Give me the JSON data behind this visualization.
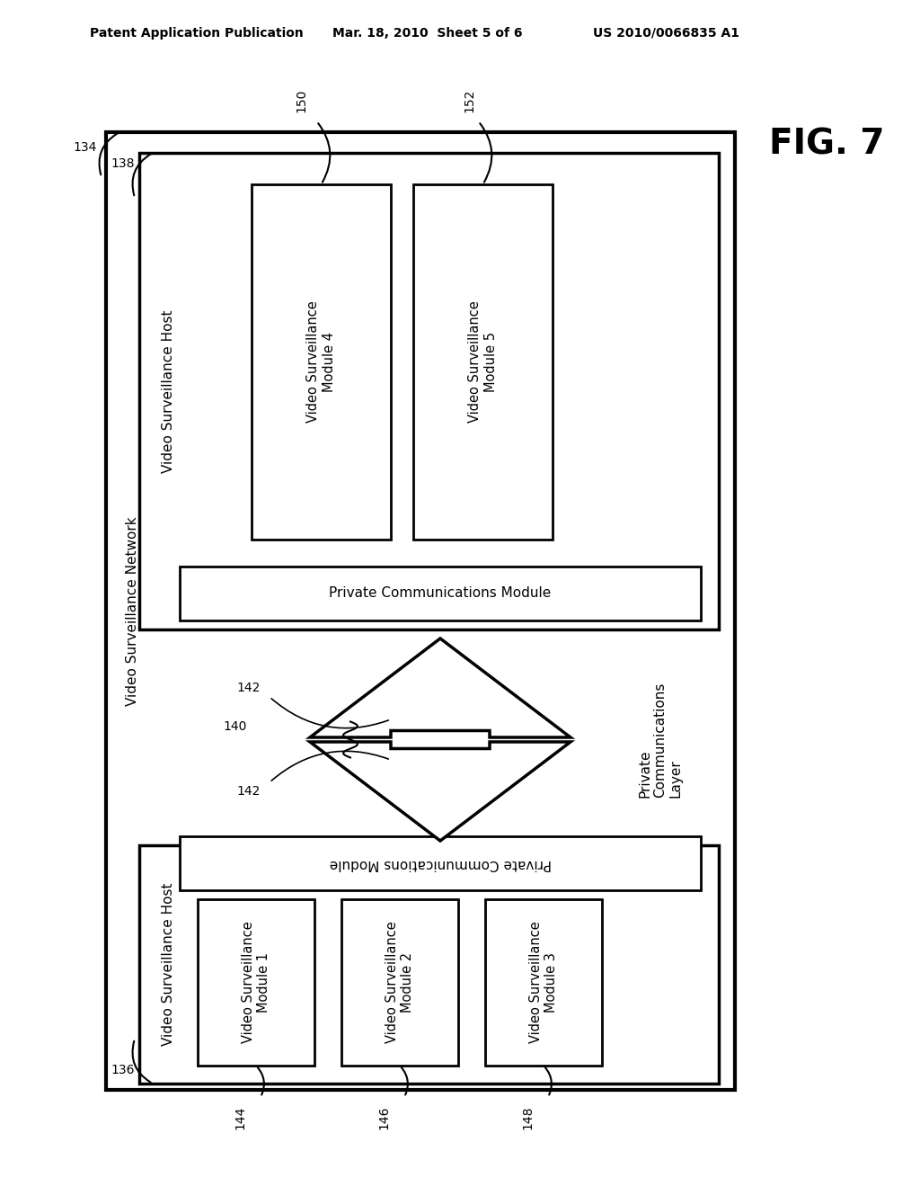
{
  "bg_color": "#ffffff",
  "header_left": "Patent Application Publication",
  "header_mid": "Mar. 18, 2010  Sheet 5 of 6",
  "header_right": "US 2010/0066835 A1",
  "fig_label": "FIG. 7",
  "outer_box_label": "Video Surveillance Network",
  "upper_host_label": "Video Surveillance Host",
  "upper_pcm_label": "Private Communications Module",
  "upper_vsm4_label": "Video Surveillance\nModule 4",
  "upper_vsm5_label": "Video Surveillance\nModule 5",
  "vsm4_ref": "150",
  "vsm5_ref": "152",
  "ref134": "134",
  "ref138": "138",
  "arrow_label": "Private\nCommunications\nLayer",
  "ref142a": "142",
  "ref142b": "142",
  "ref140": "140",
  "lower_host_label": "Video Surveillance Host",
  "lower_pcm_label": "Private Communications Module",
  "lower_vsm1_label": "Video Surveillance\nModule 1",
  "lower_vsm2_label": "Video Surveillance\nModule 2",
  "lower_vsm3_label": "Video Surveillance\nModule 3",
  "vsm1_ref": "144",
  "vsm2_ref": "146",
  "vsm3_ref": "148",
  "ref136": "136"
}
